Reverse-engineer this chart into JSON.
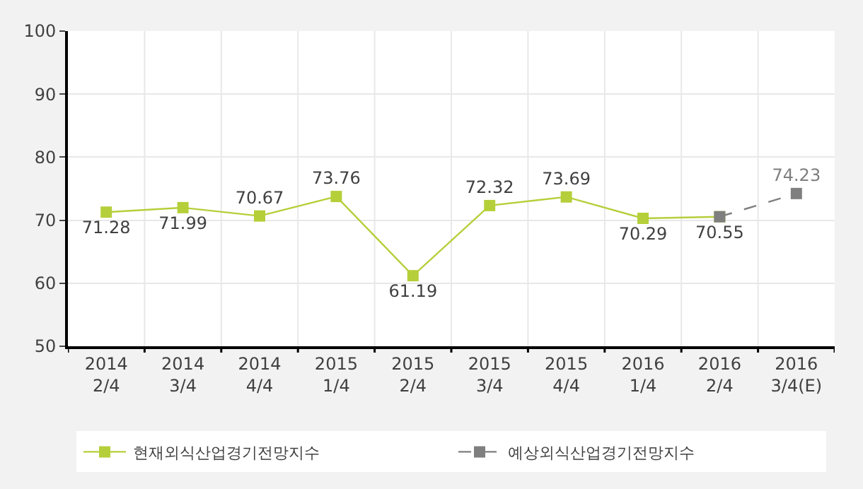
{
  "chart_data": {
    "type": "line",
    "categories": [
      "2014\n2/4",
      "2014\n3/4",
      "2014\n4/4",
      "2015\n1/4",
      "2015\n2/4",
      "2015\n3/4",
      "2015\n4/4",
      "2016\n1/4",
      "2016\n2/4",
      "2016\n3/4(E)"
    ],
    "series": [
      {
        "name": "현재외식산업경기전망지수",
        "color": "#b5cf3a",
        "line_style": "solid",
        "values": [
          71.28,
          71.99,
          70.67,
          73.76,
          61.19,
          72.32,
          73.69,
          70.29,
          70.55,
          null
        ],
        "value_labels": [
          "71.28",
          "71.99",
          "70.67",
          "73.76",
          "61.19",
          "72.32",
          "73.69",
          "70.29",
          "70.55",
          null
        ]
      },
      {
        "name": "예상외식산업경기전망지수",
        "color": "#7f7f7f",
        "line_style": "dashed",
        "values": [
          null,
          null,
          null,
          null,
          null,
          null,
          null,
          null,
          70.55,
          74.23
        ],
        "value_labels": [
          null,
          null,
          null,
          null,
          null,
          null,
          null,
          null,
          null,
          "74.23"
        ]
      }
    ],
    "ylim": [
      50,
      100
    ],
    "yticks": [
      50,
      60,
      70,
      80,
      90,
      100
    ],
    "grid": true,
    "legend": "bottom",
    "marker": "square"
  }
}
